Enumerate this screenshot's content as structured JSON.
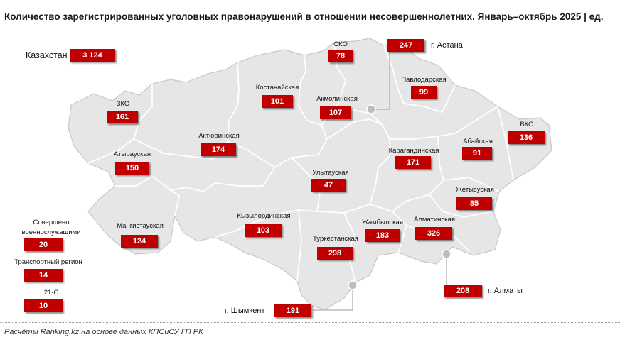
{
  "title": "Количество зарегистрированных уголовных правонарушений в отношении несовершеннолетних. Январь–октябрь 2025 | ед.",
  "footer": "Расчёты Ranking.kz на основе данных КПСиСУ ГП РК",
  "total": {
    "label": "Казахстан",
    "value": "3 124"
  },
  "regions": {
    "sko": {
      "label": "СКО",
      "value": "78"
    },
    "kostanay": {
      "label": "Костанайская",
      "value": "101"
    },
    "akmola": {
      "label": "Акмолинская",
      "value": "107"
    },
    "pavlodar": {
      "label": "Павлодарская",
      "value": "99"
    },
    "zko": {
      "label": "ЗКО",
      "value": "161"
    },
    "aktobe": {
      "label": "Актюбинская",
      "value": "174"
    },
    "atyrau": {
      "label": "Атырауская",
      "value": "150"
    },
    "karaganda": {
      "label": "Карагандинская",
      "value": "171"
    },
    "abay": {
      "label": "Абайская",
      "value": "91"
    },
    "vko": {
      "label": "ВКО",
      "value": "136"
    },
    "ulytau": {
      "label": "Улытауская",
      "value": "47"
    },
    "zhetysu": {
      "label": "Жетысуская",
      "value": "85"
    },
    "mangystau": {
      "label": "Мангистауская",
      "value": "124"
    },
    "kyzylorda": {
      "label": "Кызылординская",
      "value": "103"
    },
    "zhambyl": {
      "label": "Жамбылская",
      "value": "183"
    },
    "almaty_reg": {
      "label": "Алматинская",
      "value": "326"
    },
    "turkestan": {
      "label": "Туркестанская",
      "value": "298"
    }
  },
  "cities": {
    "astana": {
      "label": "г. Астана",
      "value": "247"
    },
    "almaty": {
      "label": "г. Алматы",
      "value": "208"
    },
    "shymkent": {
      "label": "г. Шымкент",
      "value": "191"
    }
  },
  "other": {
    "military": {
      "label_line1": "Совершено",
      "label_line2": "военнослужащими",
      "value": "20"
    },
    "transport": {
      "label": "Транспортный регион",
      "value": "14"
    },
    "c21": {
      "label": "21-С",
      "value": "10"
    }
  },
  "colors": {
    "badge": "#c00000",
    "map_fill": "#e6e6e6",
    "map_border": "#ffffff",
    "map_outline": "#cfcfcf",
    "marker": "#bdbdbd"
  }
}
